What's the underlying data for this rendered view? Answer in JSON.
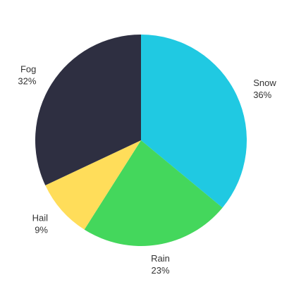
{
  "chart_data": {
    "type": "pie",
    "start_angle_deg": 0,
    "direction": "clockwise",
    "slices": [
      {
        "label": "Snow",
        "value": 36,
        "display": "36%",
        "color": "#20c9e2"
      },
      {
        "label": "Rain",
        "value": 23,
        "display": "23%",
        "color": "#44d75c"
      },
      {
        "label": "Hail",
        "value": 9,
        "display": "9%",
        "color": "#ffdd5a"
      },
      {
        "label": "Fog",
        "value": 32,
        "display": "32%",
        "color": "#2e2f41"
      }
    ],
    "legend": "none"
  }
}
